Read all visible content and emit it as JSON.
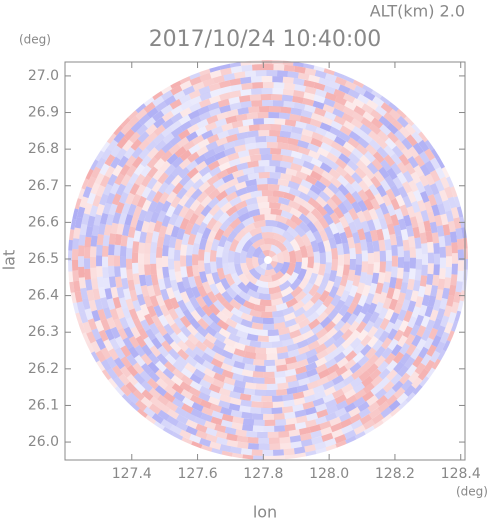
{
  "chart_data": {
    "type": "ppi",
    "title": "2017/10/24 10:40:00",
    "subtitle": "ALT(km) 2.0",
    "x_label": "lon",
    "y_label": "lat",
    "x_unit": "(deg)",
    "y_unit": "(deg)",
    "xlim": [
      127.197,
      128.413
    ],
    "ylim": [
      25.951,
      27.038
    ],
    "xticks": [
      127.4,
      127.6,
      127.8,
      {
        "value": 128,
        "label": "128.0"
      },
      128.2,
      128.4
    ],
    "yticks": [
      {
        "value": 26,
        "label": "26.0"
      },
      26.1,
      26.2,
      26.3,
      26.4,
      26.5,
      26.6,
      26.7,
      26.8,
      26.9,
      {
        "value": 27,
        "label": "27.0"
      }
    ],
    "colors": [
      "#f08a8a",
      "#8c8cf0"
    ]
  }
}
